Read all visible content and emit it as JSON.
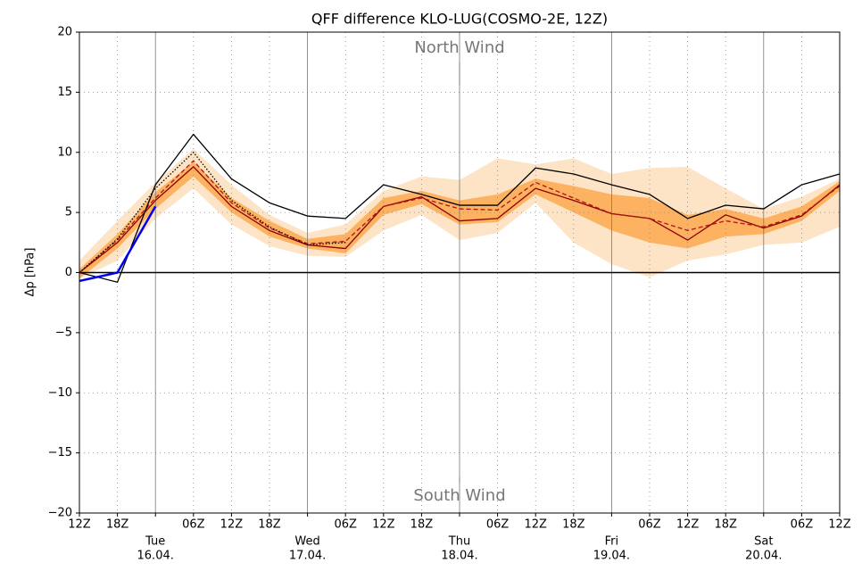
{
  "chart_data": {
    "type": "line",
    "title": "QFF difference KLO-LUG(COSMO-2E, 12Z)",
    "ylabel": "Δp [hPa]",
    "annotations": [
      "North Wind",
      "South Wind"
    ],
    "x": [
      0,
      6,
      12,
      18,
      24,
      30,
      36,
      42,
      48,
      54,
      60,
      66,
      72,
      78,
      84,
      90,
      96,
      102,
      108,
      114,
      120
    ],
    "xlim": [
      0,
      120
    ],
    "xticks": [
      {
        "value": 0,
        "label": "12Z"
      },
      {
        "value": 6,
        "label": "18Z"
      },
      {
        "value": 12,
        "label": [
          "Tue",
          "16.04."
        ]
      },
      {
        "value": 18,
        "label": "06Z"
      },
      {
        "value": 24,
        "label": "12Z"
      },
      {
        "value": 30,
        "label": "18Z"
      },
      {
        "value": 36,
        "label": [
          "Wed",
          "17.04."
        ]
      },
      {
        "value": 42,
        "label": "06Z"
      },
      {
        "value": 48,
        "label": "12Z"
      },
      {
        "value": 54,
        "label": "18Z"
      },
      {
        "value": 60,
        "label": [
          "Thu",
          "18.04."
        ]
      },
      {
        "value": 66,
        "label": "06Z"
      },
      {
        "value": 72,
        "label": "12Z"
      },
      {
        "value": 78,
        "label": "18Z"
      },
      {
        "value": 84,
        "label": [
          "Fri",
          "19.04."
        ]
      },
      {
        "value": 90,
        "label": "06Z"
      },
      {
        "value": 96,
        "label": "12Z"
      },
      {
        "value": 102,
        "label": "18Z"
      },
      {
        "value": 108,
        "label": [
          "Sat",
          "20.04."
        ]
      },
      {
        "value": 114,
        "label": "06Z"
      },
      {
        "value": 120,
        "label": "12Z"
      }
    ],
    "ylim": [
      -20,
      20
    ],
    "yticks": [
      {
        "value": -20,
        "label": "−20"
      },
      {
        "value": -15,
        "label": "−15"
      },
      {
        "value": -10,
        "label": "−10"
      },
      {
        "value": -5,
        "label": "−5"
      },
      0,
      5,
      10,
      15,
      20
    ],
    "grid": true,
    "zero_line": true,
    "bands": [
      {
        "color": "#fee4c6",
        "low": [
          -0.5,
          1.0,
          4.5,
          7.0,
          4.0,
          2.2,
          1.4,
          1.3,
          3.5,
          4.8,
          2.7,
          3.3,
          5.8,
          2.5,
          0.7,
          -0.4,
          1.0,
          1.5,
          2.3,
          2.5,
          3.8
        ],
        "high": [
          1.0,
          4.3,
          7.5,
          10.3,
          7.3,
          4.8,
          3.3,
          4.0,
          6.8,
          8.0,
          7.7,
          9.5,
          9.0,
          9.5,
          8.2,
          8.7,
          8.8,
          7.0,
          5.3,
          6.3,
          7.8
        ]
      },
      {
        "color": "#fdb261",
        "low": [
          -0.5,
          2.0,
          5.3,
          8.0,
          5.0,
          3.0,
          2.0,
          1.6,
          4.8,
          5.7,
          4.0,
          4.2,
          6.5,
          5.0,
          3.5,
          2.5,
          2.0,
          3.0,
          3.2,
          4.3,
          6.8
        ],
        "high": [
          0.3,
          3.2,
          6.7,
          9.2,
          6.2,
          4.3,
          2.8,
          3.2,
          6.2,
          6.8,
          6.0,
          6.5,
          7.8,
          7.2,
          6.5,
          6.2,
          4.8,
          5.3,
          4.5,
          5.5,
          7.6
        ]
      }
    ],
    "series": [
      {
        "color": "#8b0000",
        "style": "solid",
        "values": [
          0,
          2.5,
          6.0,
          8.8,
          5.5,
          3.5,
          2.3,
          2.0,
          5.5,
          6.3,
          4.3,
          4.5,
          7.0,
          6.0,
          4.9,
          4.5,
          2.7,
          4.8,
          3.7,
          4.7,
          7.3
        ]
      },
      {
        "color": "#b01515",
        "style": "dashed",
        "values": [
          0,
          2.7,
          6.2,
          9.3,
          5.8,
          3.7,
          2.4,
          2.6,
          5.5,
          6.2,
          5.3,
          5.2,
          7.5,
          6.2,
          4.9,
          4.5,
          3.5,
          4.3,
          3.8,
          4.8,
          7.2
        ]
      },
      {
        "color": "#000000",
        "style": "dotted",
        "values": [
          0,
          2.8,
          7.0,
          10.0,
          6.0,
          3.8,
          2.3,
          2.5,
          null,
          null,
          null,
          null,
          null,
          null,
          null,
          null,
          null,
          null,
          null,
          null,
          null
        ]
      },
      {
        "color": "#000000",
        "style": "solid",
        "values": [
          0,
          -0.8,
          7.3,
          11.5,
          7.8,
          5.8,
          4.7,
          4.5,
          7.3,
          6.5,
          5.6,
          5.6,
          8.7,
          8.2,
          7.3,
          6.5,
          4.5,
          5.6,
          5.3,
          7.3,
          8.2
        ]
      },
      {
        "color": "#0000ee",
        "style": "thick",
        "values": [
          -0.7,
          0,
          5.5,
          null,
          null,
          null,
          null,
          null,
          null,
          null,
          null,
          null,
          null,
          null,
          null,
          null,
          null,
          null,
          null,
          null,
          null
        ]
      }
    ]
  }
}
